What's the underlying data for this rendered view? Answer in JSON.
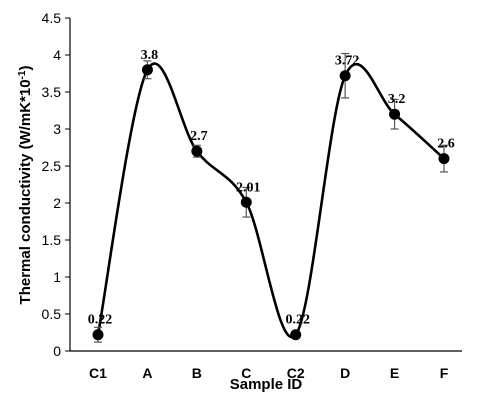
{
  "chart_data": {
    "type": "line",
    "categories": [
      "C1",
      "A",
      "B",
      "C",
      "C2",
      "D",
      "E",
      "F"
    ],
    "values": [
      0.22,
      3.8,
      2.7,
      2.01,
      0.22,
      3.72,
      3.2,
      2.6
    ],
    "error": [
      0.1,
      0.12,
      0.08,
      0.2,
      0.05,
      0.3,
      0.2,
      0.18
    ],
    "data_labels": [
      "0.22",
      "3.8",
      "2.7",
      "2.01",
      "0.22",
      "3.72",
      "3.2",
      "2.6"
    ],
    "xlabel": "Sample ID",
    "ylabel": "Thermal conductivity (W/mK*10",
    "ylabel_superscript": "-1",
    "ylabel_suffix": ")",
    "ylim": [
      0,
      4.5
    ],
    "yticks": [
      "0",
      "0.5",
      "1",
      "1.5",
      "2",
      "2.5",
      "3",
      "3.5",
      "4",
      "4.5"
    ],
    "grid": false,
    "smooth": true,
    "line_color": "#000000",
    "marker_color": "#000000",
    "errorbar_color": "#555555"
  }
}
